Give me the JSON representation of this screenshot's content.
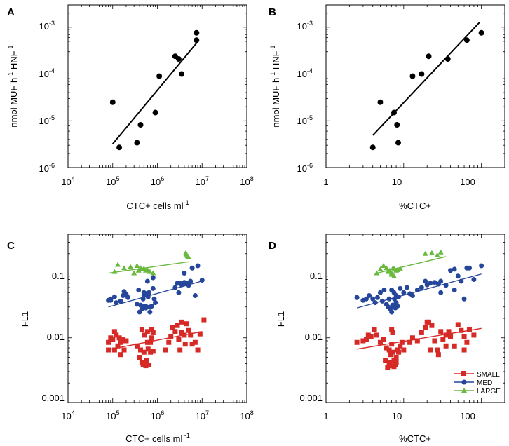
{
  "colors": {
    "small": "#d62a27",
    "med": "#25469a",
    "large": "#6ab93f",
    "fit": "#000000"
  },
  "panels": [
    {
      "label": "A",
      "xlabel_main": "CTC+ cells ml",
      "xlabel_sup": "-1",
      "ylabel_main": "nmol MUF h",
      "ylabel_sup1": "-1",
      "ylabel_mid": " HNF",
      "ylabel_sup2": "-1",
      "xticks": [
        {
          "b": "10",
          "e": "4"
        },
        {
          "b": "10",
          "e": "5"
        },
        {
          "b": "10",
          "e": "6"
        },
        {
          "b": "10",
          "e": "7"
        },
        {
          "b": "10",
          "e": "8"
        }
      ],
      "yticks": [
        {
          "b": "10",
          "e": "-6"
        },
        {
          "b": "10",
          "e": "-5"
        },
        {
          "b": "10",
          "e": "-4"
        },
        {
          "b": "10",
          "e": "-3"
        }
      ]
    },
    {
      "label": "B",
      "xlabel_main": "%CTC+",
      "xlabel_sup": "",
      "ylabel_main": "nmol MUF h",
      "ylabel_sup1": "-1",
      "ylabel_mid": " HNF",
      "ylabel_sup2": "-1",
      "xticks": [
        {
          "b": "1",
          "e": ""
        },
        {
          "b": "10",
          "e": ""
        },
        {
          "b": "100",
          "e": ""
        }
      ],
      "yticks": [
        {
          "b": "10",
          "e": "-6"
        },
        {
          "b": "10",
          "e": "-5"
        },
        {
          "b": "10",
          "e": "-4"
        },
        {
          "b": "10",
          "e": "-3"
        }
      ]
    },
    {
      "label": "C",
      "xlabel_main": "CTC+ cells ml",
      "xlabel_sup": " -1",
      "ylabel_main": "FL1",
      "xticks": [
        {
          "b": "10",
          "e": "4"
        },
        {
          "b": "10",
          "e": "5"
        },
        {
          "b": "10",
          "e": "6"
        },
        {
          "b": "10",
          "e": "7"
        },
        {
          "b": "10",
          "e": "8"
        }
      ],
      "yticks": [
        {
          "b": "0.001",
          "e": ""
        },
        {
          "b": "0.01",
          "e": ""
        },
        {
          "b": "0.1",
          "e": ""
        }
      ]
    },
    {
      "label": "D",
      "xlabel_main": "%CTC+",
      "xlabel_sup": "",
      "ylabel_main": "FL1",
      "xticks": [
        {
          "b": "1",
          "e": ""
        },
        {
          "b": "10",
          "e": ""
        },
        {
          "b": "100",
          "e": ""
        }
      ],
      "yticks": [
        {
          "b": "0.001",
          "e": ""
        },
        {
          "b": "0.01",
          "e": ""
        },
        {
          "b": "0.1",
          "e": ""
        }
      ],
      "legend": [
        "SMALL",
        "MED",
        "LARGE"
      ]
    }
  ],
  "chart_data": [
    {
      "panel": "A",
      "type": "scatter",
      "xscale": "log",
      "yscale": "log",
      "xlim": [
        10000,
        100000000
      ],
      "ylim": [
        1e-06,
        0.003
      ],
      "xlabel": "CTC+ cells ml-1",
      "ylabel": "nmol MUF h-1 HNF-1",
      "series": [
        {
          "name": "data",
          "marker": "circle",
          "x": [
            100000,
            140000,
            350000,
            420000,
            900000,
            1100000,
            2500000,
            3000000,
            3500000,
            7500000,
            7500000
          ],
          "y": [
            2.5e-05,
            2.7e-06,
            3.4e-06,
            8.2e-06,
            1.5e-05,
            9e-05,
            0.00024,
            0.00021,
            0.0001,
            0.00076,
            0.00053
          ]
        }
      ],
      "fit": {
        "x": [
          100000,
          7800000
        ],
        "y": [
          3.2e-06,
          0.00048
        ]
      }
    },
    {
      "panel": "B",
      "type": "scatter",
      "xscale": "log",
      "yscale": "log",
      "xlim": [
        1,
        200
      ],
      "ylim": [
        1e-06,
        0.003
      ],
      "xlabel": "%CTC+",
      "ylabel": "nmol MUF h-1 HNF-1",
      "series": [
        {
          "name": "data",
          "marker": "circle",
          "x": [
            4,
            5,
            7.5,
            8.2,
            8.5,
            13,
            17,
            21,
            37,
            65,
            100
          ],
          "y": [
            2.7e-06,
            2.5e-05,
            1.5e-05,
            8.2e-06,
            3.4e-06,
            9e-05,
            0.0001,
            0.00024,
            0.00021,
            0.00053,
            0.00076
          ]
        }
      ],
      "fit": {
        "x": [
          4,
          95
        ],
        "y": [
          4.9e-06,
          0.00128
        ]
      }
    },
    {
      "panel": "C",
      "type": "scatter",
      "xscale": "log",
      "yscale": "log",
      "xlim": [
        10000,
        100000000
      ],
      "ylim": [
        0.001,
        0.4
      ],
      "xlabel": "CTC+ cells ml-1",
      "ylabel": "FL1",
      "series": [
        {
          "name": "SMALL",
          "marker": "square",
          "x": [
            80000,
            90000,
            100000,
            110000,
            120000,
            130000,
            140000,
            150000,
            170000,
            180000,
            200000,
            80000,
            110000,
            150000,
            180000,
            350000,
            400000,
            420000,
            450000,
            480000,
            500000,
            520000,
            550000,
            580000,
            600000,
            620000,
            650000,
            700000,
            750000,
            800000,
            450000,
            520000,
            600000,
            700000,
            750000,
            800000,
            1500000,
            1800000,
            2000000,
            2200000,
            2500000,
            2800000,
            3000000,
            3200000,
            3500000,
            4000000,
            4500000,
            5000000,
            5500000,
            6000000,
            7000000,
            8000000,
            11000000,
            9000000,
            3500000,
            4200000
          ],
          "y": [
            0.0085,
            0.01,
            0.0095,
            0.0125,
            0.011,
            0.0075,
            0.01,
            0.0085,
            0.0095,
            0.0065,
            0.009,
            0.0065,
            0.0065,
            0.0055,
            0.009,
            0.0075,
            0.005,
            0.0065,
            0.0042,
            0.0038,
            0.006,
            0.0042,
            0.0037,
            0.0045,
            0.0085,
            0.0067,
            0.0038,
            0.006,
            0.0135,
            0.012,
            0.0135,
            0.011,
            0.0125,
            0.0085,
            0.01,
            0.0062,
            0.0065,
            0.0085,
            0.0105,
            0.0145,
            0.0125,
            0.0155,
            0.0095,
            0.0065,
            0.0175,
            0.011,
            0.0165,
            0.013,
            0.011,
            0.008,
            0.0085,
            0.0065,
            0.019,
            0.0115,
            0.012,
            0.008
          ]
        },
        {
          "name": "MED",
          "marker": "circle",
          "x": [
            80000,
            90000,
            110000,
            120000,
            150000,
            170000,
            180000,
            200000,
            220000,
            90000,
            350000,
            380000,
            400000,
            420000,
            450000,
            480000,
            500000,
            520000,
            550000,
            580000,
            600000,
            620000,
            650000,
            680000,
            700000,
            750000,
            800000,
            850000,
            900000,
            500000,
            600000,
            800000,
            2500000,
            2800000,
            3000000,
            3500000,
            3800000,
            4000000,
            4500000,
            5000000,
            5500000,
            6000000,
            8000000,
            10000000,
            7000000,
            4000000,
            3200000
          ],
          "y": [
            0.038,
            0.04,
            0.043,
            0.035,
            0.037,
            0.045,
            0.052,
            0.047,
            0.042,
            0.038,
            0.033,
            0.055,
            0.025,
            0.032,
            0.028,
            0.04,
            0.045,
            0.031,
            0.029,
            0.03,
            0.049,
            0.043,
            0.05,
            0.025,
            0.03,
            0.031,
            0.058,
            0.04,
            0.035,
            0.05,
            0.075,
            0.085,
            0.06,
            0.07,
            0.05,
            0.066,
            0.068,
            0.072,
            0.07,
            0.065,
            0.075,
            0.12,
            0.13,
            0.078,
            0.045,
            0.1,
            0.07
          ]
        },
        {
          "name": "LARGE",
          "marker": "triangle",
          "x": [
            110000,
            130000,
            180000,
            250000,
            300000,
            350000,
            380000,
            420000,
            450000,
            500000,
            550000,
            600000,
            680000,
            800000,
            4300000,
            4500000,
            4700000,
            4900000
          ],
          "y": [
            0.105,
            0.135,
            0.12,
            0.125,
            0.1,
            0.13,
            0.11,
            0.12,
            0.115,
            0.118,
            0.11,
            0.112,
            0.105,
            0.1,
            0.205,
            0.195,
            0.185,
            0.18
          ]
        }
      ],
      "fits": [
        {
          "name": "SMALL",
          "x": [
            80000,
            10000000
          ],
          "y": [
            0.0066,
            0.0125
          ]
        },
        {
          "name": "MED",
          "x": [
            80000,
            11000000
          ],
          "y": [
            0.03,
            0.077
          ]
        },
        {
          "name": "LARGE",
          "x": [
            80000,
            5000000
          ],
          "y": [
            0.1,
            0.15
          ]
        }
      ]
    },
    {
      "panel": "D",
      "type": "scatter",
      "xscale": "log",
      "yscale": "log",
      "xlim": [
        1,
        200
      ],
      "ylim": [
        0.001,
        0.4
      ],
      "xlabel": "%CTC+",
      "ylabel": "FL1",
      "series": [
        {
          "name": "SMALL",
          "marker": "square",
          "x": [
            2.5,
            3,
            3.3,
            3.5,
            3.8,
            4.2,
            4.5,
            5,
            5.5,
            6,
            6.5,
            6.8,
            7,
            7.2,
            7.5,
            7.8,
            8,
            8.3,
            8.6,
            9,
            9.5,
            10,
            6.5,
            7,
            7.5,
            8,
            7,
            7.2,
            12,
            13,
            15,
            17,
            19,
            20,
            21,
            23,
            25,
            27,
            30,
            32,
            35,
            38,
            40,
            45,
            50,
            55,
            60,
            65,
            70,
            80,
            60,
            35,
            28,
            22,
            6.2,
            5.8
          ],
          "y": [
            0.0085,
            0.009,
            0.0095,
            0.011,
            0.0105,
            0.0135,
            0.011,
            0.0085,
            0.0095,
            0.007,
            0.0065,
            0.0055,
            0.008,
            0.006,
            0.0045,
            0.0038,
            0.005,
            0.0065,
            0.006,
            0.0075,
            0.0085,
            0.0065,
            0.0042,
            0.0037,
            0.0036,
            0.0042,
            0.0135,
            0.012,
            0.0085,
            0.01,
            0.009,
            0.012,
            0.0145,
            0.0175,
            0.0175,
            0.0155,
            0.009,
            0.0065,
            0.0125,
            0.0095,
            0.011,
            0.0125,
            0.0105,
            0.0075,
            0.016,
            0.013,
            0.0105,
            0.0085,
            0.0135,
            0.011,
            0.0065,
            0.0075,
            0.0055,
            0.0065,
            0.0035,
            0.0045
          ]
        },
        {
          "name": "MED",
          "marker": "circle",
          "x": [
            2.5,
            3,
            3.3,
            3.6,
            4,
            4.3,
            4.6,
            5,
            5.3,
            5.6,
            6,
            6.3,
            6.5,
            6.7,
            7,
            7.2,
            7.4,
            7.6,
            7.8,
            8,
            8.3,
            8.6,
            7,
            7.5,
            8,
            10,
            11,
            13,
            15,
            17,
            19,
            20,
            22,
            25,
            28,
            30,
            35,
            40,
            45,
            50,
            55,
            65,
            70,
            80,
            100,
            45,
            30,
            60,
            12,
            9
          ],
          "y": [
            0.042,
            0.038,
            0.04,
            0.045,
            0.04,
            0.035,
            0.042,
            0.05,
            0.037,
            0.055,
            0.033,
            0.03,
            0.04,
            0.028,
            0.025,
            0.032,
            0.03,
            0.04,
            0.029,
            0.035,
            0.031,
            0.043,
            0.055,
            0.05,
            0.045,
            0.05,
            0.06,
            0.045,
            0.055,
            0.06,
            0.075,
            0.066,
            0.07,
            0.072,
            0.068,
            0.075,
            0.065,
            0.11,
            0.115,
            0.09,
            0.075,
            0.12,
            0.12,
            0.08,
            0.13,
            0.055,
            0.05,
            0.04,
            0.048,
            0.058
          ]
        },
        {
          "name": "LARGE",
          "marker": "triangle",
          "x": [
            4.5,
            5,
            5.5,
            6,
            6.3,
            6.6,
            7,
            7.3,
            7.6,
            8,
            8.3,
            9,
            7,
            7.5,
            19,
            23,
            27,
            30
          ],
          "y": [
            0.1,
            0.115,
            0.13,
            0.12,
            0.105,
            0.11,
            0.1,
            0.12,
            0.115,
            0.11,
            0.112,
            0.118,
            0.095,
            0.09,
            0.2,
            0.205,
            0.19,
            0.21
          ]
        }
      ],
      "fits": [
        {
          "name": "SMALL",
          "x": [
            2.5,
            100
          ],
          "y": [
            0.0067,
            0.014
          ]
        },
        {
          "name": "MED",
          "x": [
            2.5,
            100
          ],
          "y": [
            0.029,
            0.097
          ]
        },
        {
          "name": "LARGE",
          "x": [
            4.5,
            35
          ],
          "y": [
            0.1,
            0.18
          ]
        }
      ]
    }
  ]
}
